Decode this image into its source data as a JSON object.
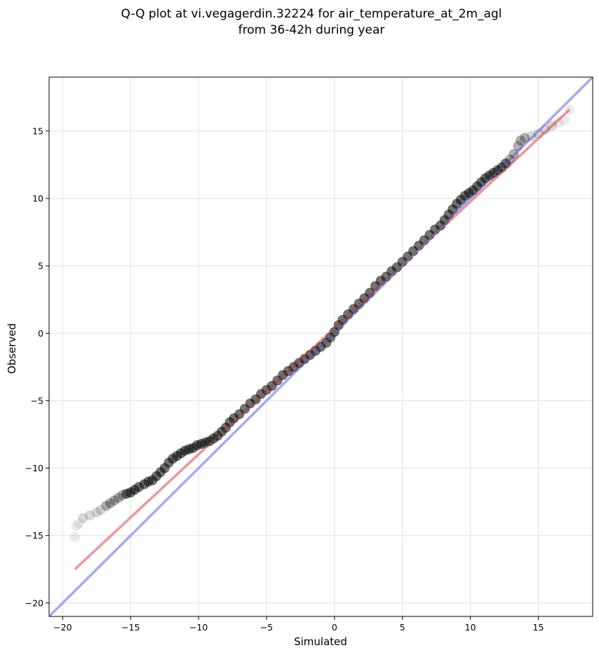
{
  "chart_data": {
    "type": "scatter",
    "title": [
      "Q-Q plot at vi.vegagerdin.32224 for air_temperature_at_2m_agl",
      "from 36-42h during year"
    ],
    "xlabel": "Simulated",
    "ylabel": "Observed",
    "xlim": [
      -21,
      19
    ],
    "ylim": [
      -21,
      19
    ],
    "xticks": [
      -20,
      -15,
      -10,
      -5,
      0,
      5,
      10,
      15
    ],
    "yticks": [
      -20,
      -15,
      -10,
      -5,
      0,
      5,
      10,
      15
    ],
    "tick_labels_x": [
      "−20",
      "−15",
      "−10",
      "−5",
      "0",
      "5",
      "10",
      "15"
    ],
    "tick_labels_y": [
      "−20",
      "−15",
      "−10",
      "−5",
      "0",
      "5",
      "10",
      "15"
    ],
    "grid": true,
    "series": [
      {
        "kind": "scatter",
        "color": "#000000",
        "points": [
          [
            -19.1,
            -15.1
          ],
          [
            -19.0,
            -14.3
          ],
          [
            -18.8,
            -14.1
          ],
          [
            -18.5,
            -13.7
          ],
          [
            -18.0,
            -13.5
          ],
          [
            -17.5,
            -13.3
          ],
          [
            -17.2,
            -13.1
          ],
          [
            -16.8,
            -12.8
          ],
          [
            -16.5,
            -12.6
          ],
          [
            -16.2,
            -12.4
          ],
          [
            -15.9,
            -12.2
          ],
          [
            -15.6,
            -12.0
          ],
          [
            -15.3,
            -11.9
          ],
          [
            -15.0,
            -11.8
          ],
          [
            -14.7,
            -11.6
          ],
          [
            -14.4,
            -11.4
          ],
          [
            -14.0,
            -11.2
          ],
          [
            -13.7,
            -11.0
          ],
          [
            -13.4,
            -10.9
          ],
          [
            -13.1,
            -10.6
          ],
          [
            -12.8,
            -10.3
          ],
          [
            -12.5,
            -10.0
          ],
          [
            -12.2,
            -9.6
          ],
          [
            -11.9,
            -9.3
          ],
          [
            -11.6,
            -9.1
          ],
          [
            -11.3,
            -8.9
          ],
          [
            -11.0,
            -8.7
          ],
          [
            -10.7,
            -8.6
          ],
          [
            -10.4,
            -8.5
          ],
          [
            -10.1,
            -8.3
          ],
          [
            -9.8,
            -8.2
          ],
          [
            -9.5,
            -8.1
          ],
          [
            -9.2,
            -8.0
          ],
          [
            -8.9,
            -7.8
          ],
          [
            -8.6,
            -7.6
          ],
          [
            -8.3,
            -7.3
          ],
          [
            -8.0,
            -7.0
          ],
          [
            -7.7,
            -6.6
          ],
          [
            -7.4,
            -6.3
          ],
          [
            -7.0,
            -6.0
          ],
          [
            -6.6,
            -5.6
          ],
          [
            -6.2,
            -5.2
          ],
          [
            -5.8,
            -4.9
          ],
          [
            -5.4,
            -4.5
          ],
          [
            -5.0,
            -4.2
          ],
          [
            -4.6,
            -3.9
          ],
          [
            -4.2,
            -3.5
          ],
          [
            -3.8,
            -3.1
          ],
          [
            -3.4,
            -2.8
          ],
          [
            -3.0,
            -2.5
          ],
          [
            -2.6,
            -2.2
          ],
          [
            -2.2,
            -1.9
          ],
          [
            -1.8,
            -1.6
          ],
          [
            -1.4,
            -1.3
          ],
          [
            -1.0,
            -1.0
          ],
          [
            -0.6,
            -0.7
          ],
          [
            -0.3,
            -0.3
          ],
          [
            0.0,
            0.1
          ],
          [
            0.3,
            0.6
          ],
          [
            0.6,
            1.0
          ],
          [
            1.0,
            1.4
          ],
          [
            1.4,
            1.8
          ],
          [
            1.8,
            2.2
          ],
          [
            2.2,
            2.6
          ],
          [
            2.6,
            3.0
          ],
          [
            3.0,
            3.5
          ],
          [
            3.4,
            3.9
          ],
          [
            3.8,
            4.2
          ],
          [
            4.2,
            4.6
          ],
          [
            4.6,
            4.9
          ],
          [
            5.0,
            5.3
          ],
          [
            5.4,
            5.7
          ],
          [
            5.8,
            6.1
          ],
          [
            6.2,
            6.5
          ],
          [
            6.6,
            6.9
          ],
          [
            7.0,
            7.3
          ],
          [
            7.4,
            7.7
          ],
          [
            7.8,
            8.0
          ],
          [
            8.1,
            8.4
          ],
          [
            8.4,
            8.8
          ],
          [
            8.7,
            9.2
          ],
          [
            9.0,
            9.6
          ],
          [
            9.3,
            9.9
          ],
          [
            9.6,
            10.2
          ],
          [
            9.9,
            10.4
          ],
          [
            10.2,
            10.6
          ],
          [
            10.5,
            10.9
          ],
          [
            10.8,
            11.2
          ],
          [
            11.1,
            11.5
          ],
          [
            11.4,
            11.7
          ],
          [
            11.7,
            11.9
          ],
          [
            12.0,
            12.1
          ],
          [
            12.3,
            12.3
          ],
          [
            12.6,
            12.6
          ],
          [
            12.9,
            12.9
          ],
          [
            13.2,
            13.3
          ],
          [
            13.5,
            13.9
          ],
          [
            13.7,
            14.3
          ],
          [
            14.0,
            14.5
          ],
          [
            14.5,
            14.6
          ],
          [
            15.0,
            14.8
          ],
          [
            15.5,
            15.1
          ],
          [
            16.0,
            15.4
          ],
          [
            16.5,
            15.6
          ],
          [
            16.9,
            15.8
          ],
          [
            17.3,
            16.6
          ]
        ]
      },
      {
        "kind": "line",
        "color": "#ef8a8a",
        "points": [
          [
            -19.1,
            -17.5
          ],
          [
            17.3,
            16.6
          ]
        ]
      },
      {
        "kind": "line",
        "color": "#9f9ff5",
        "points": [
          [
            -21,
            -21
          ],
          [
            19,
            19
          ]
        ]
      }
    ]
  }
}
